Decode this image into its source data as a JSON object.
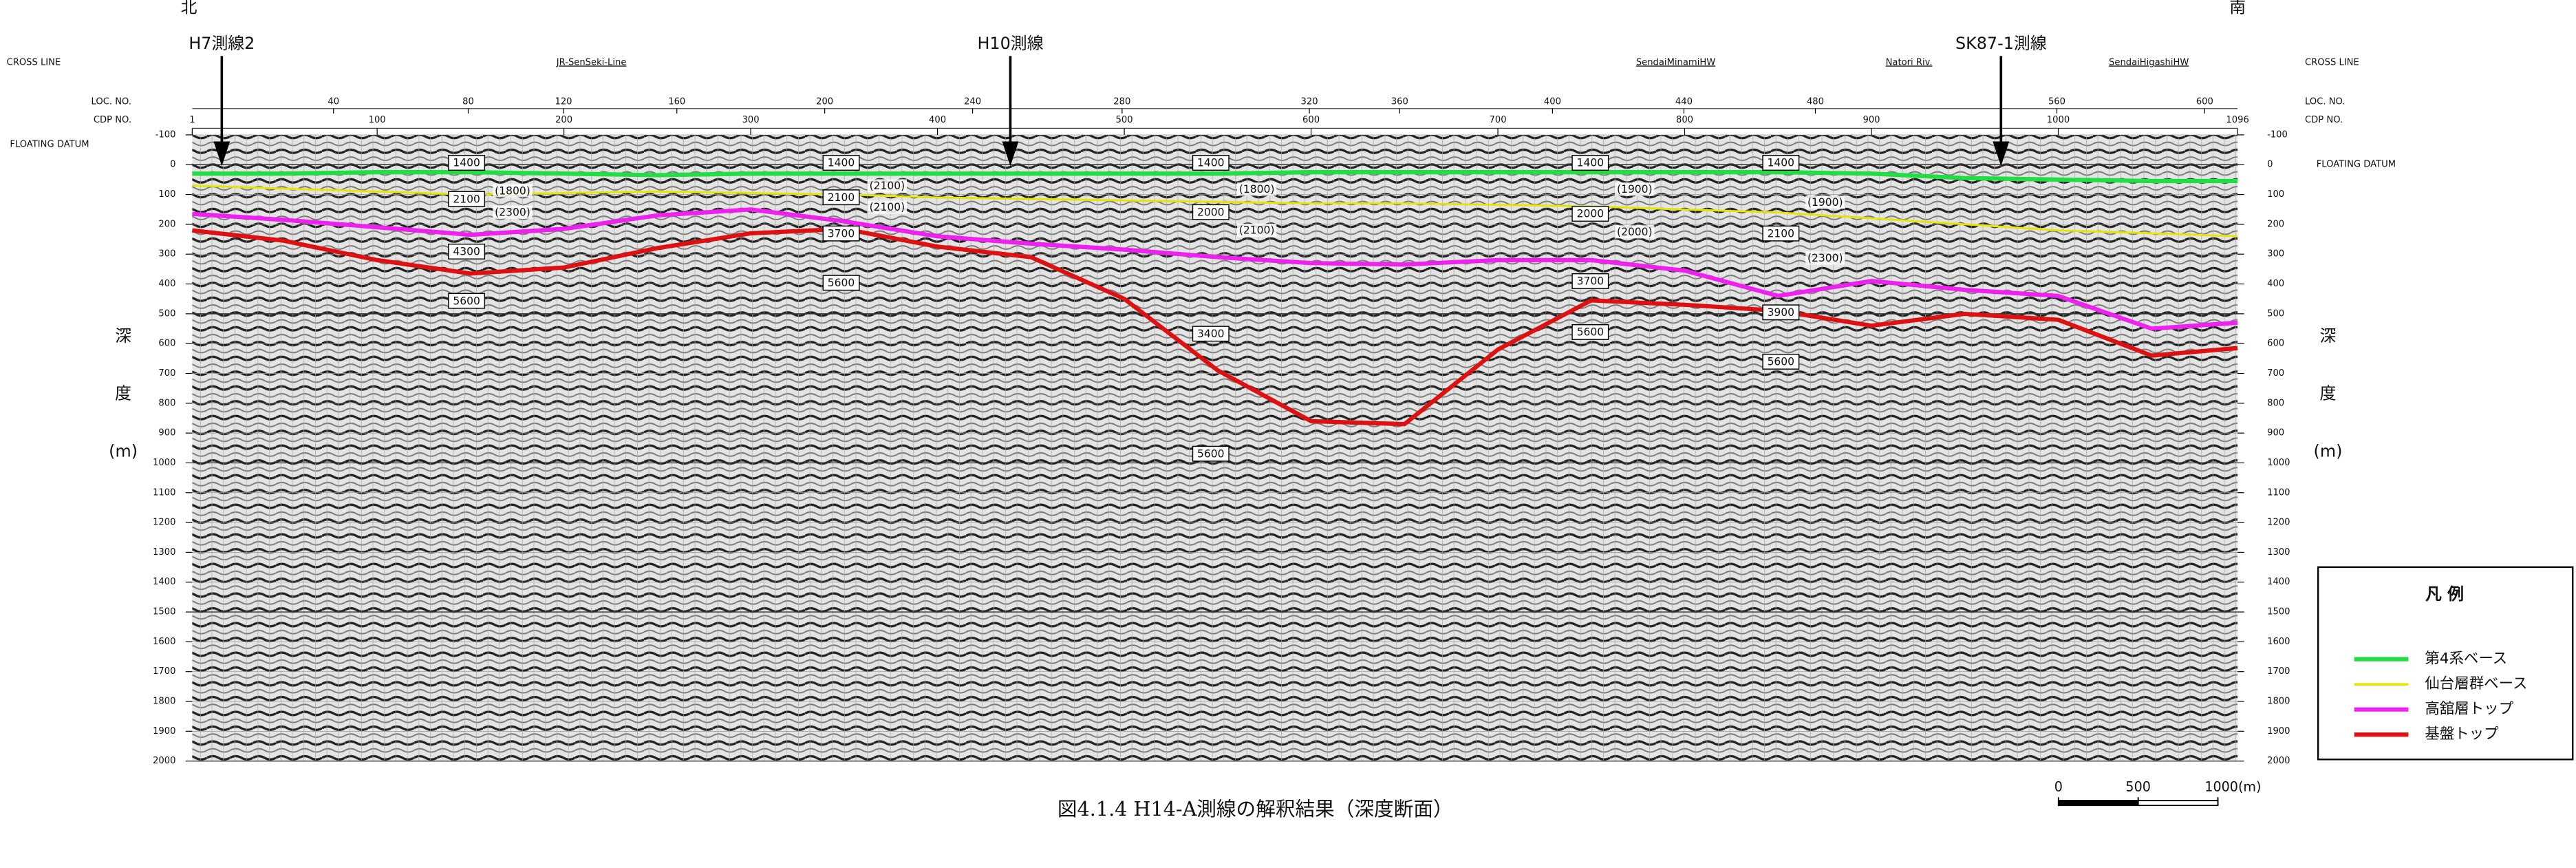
{
  "chart_data": {
    "type": "line",
    "caption": "図4.1.4 H14-A測線の解釈結果（深度断面）",
    "north": "北",
    "south": "南",
    "cross_line_label": "CROSS LINE",
    "loc_label": "LOC. NO.",
    "cdp_label": "CDP NO.",
    "datum_label": "FLOATING DATUM",
    "y_label": [
      "深",
      "度",
      "(m)"
    ],
    "cross_lines": [
      "H7測線2",
      "H10測線",
      "SK87-1測線"
    ],
    "crossings": [
      "JR-SenSeki-Line",
      "SendaiMinamiHW",
      "Natori Riv.",
      "SendaiHigashiHW"
    ],
    "loc_ticks": [
      40,
      80,
      120,
      160,
      200,
      240,
      280,
      320,
      360,
      400,
      440,
      480,
      560,
      600
    ],
    "x": [
      1,
      50,
      100,
      150,
      200,
      250,
      300,
      350,
      400,
      450,
      500,
      550,
      600,
      650,
      700,
      750,
      800,
      850,
      900,
      950,
      1000,
      1050,
      1096
    ],
    "xlim": [
      1,
      1096
    ],
    "xticks": [
      1,
      100,
      200,
      300,
      400,
      500,
      600,
      700,
      800,
      900,
      1000,
      1096
    ],
    "ylim": [
      -100,
      2000
    ],
    "y_inverted": true,
    "yticks": [
      -100,
      0,
      100,
      200,
      300,
      400,
      500,
      600,
      700,
      800,
      900,
      1000,
      1100,
      1200,
      1300,
      1400,
      1500,
      1600,
      1700,
      1800,
      1900,
      2000
    ],
    "grid": true,
    "legend_title": "凡 例",
    "legend": "lower right",
    "series": [
      {
        "name": "第4系ベース",
        "color": "#22dd44",
        "values": [
          30,
          30,
          25,
          25,
          30,
          35,
          30,
          30,
          30,
          30,
          30,
          30,
          25,
          25,
          25,
          25,
          25,
          25,
          30,
          45,
          50,
          55,
          55
        ]
      },
      {
        "name": "仙台層群ベース",
        "color": "#e6e600",
        "values": [
          70,
          80,
          90,
          100,
          95,
          90,
          95,
          100,
          110,
          115,
          120,
          125,
          130,
          130,
          135,
          140,
          150,
          160,
          180,
          200,
          220,
          230,
          240
        ]
      },
      {
        "name": "高舘層トップ",
        "color": "#ee22ee",
        "values": [
          165,
          185,
          210,
          235,
          215,
          170,
          150,
          190,
          240,
          265,
          285,
          310,
          330,
          335,
          320,
          320,
          355,
          440,
          390,
          420,
          440,
          550,
          530
        ]
      },
      {
        "name": "基盤トップ",
        "color": "#dd1111",
        "values": [
          220,
          255,
          320,
          365,
          345,
          280,
          230,
          215,
          275,
          310,
          450,
          690,
          860,
          870,
          620,
          455,
          470,
          490,
          540,
          500,
          520,
          640,
          615
        ]
      }
    ],
    "annotations": [
      {
        "text": "1400",
        "boxed": true
      },
      {
        "text": "1400",
        "boxed": true
      },
      {
        "text": "1400",
        "boxed": true
      },
      {
        "text": "1400",
        "boxed": true
      },
      {
        "text": "1400",
        "boxed": true
      },
      {
        "text": "2100",
        "boxed": true
      },
      {
        "text": "2100",
        "boxed": true
      },
      {
        "text": "2100",
        "boxed": true
      },
      {
        "text": "2000",
        "boxed": true
      },
      {
        "text": "2000",
        "boxed": true
      },
      {
        "text": "3700",
        "boxed": true
      },
      {
        "text": "3700",
        "boxed": true
      },
      {
        "text": "4300",
        "boxed": true
      },
      {
        "text": "5600",
        "boxed": true
      },
      {
        "text": "5600",
        "boxed": true
      },
      {
        "text": "5600",
        "boxed": true
      },
      {
        "text": "5600",
        "boxed": true
      },
      {
        "text": "5600",
        "boxed": true
      },
      {
        "text": "3400",
        "boxed": true
      },
      {
        "text": "3900",
        "boxed": true
      },
      {
        "text": "(1800)",
        "boxed": false
      },
      {
        "text": "(1800)",
        "boxed": false
      },
      {
        "text": "(2300)",
        "boxed": false
      },
      {
        "text": "(2300)",
        "boxed": false
      },
      {
        "text": "(2100)",
        "boxed": false
      },
      {
        "text": "(2100)",
        "boxed": false
      },
      {
        "text": "(2100)",
        "boxed": false
      },
      {
        "text": "(1900)",
        "boxed": false
      },
      {
        "text": "(1900)",
        "boxed": false
      },
      {
        "text": "(2000)",
        "boxed": false
      }
    ],
    "scale_bar": [
      0,
      500,
      {
        "value": 1000,
        "label": "1000(m)"
      }
    ]
  }
}
